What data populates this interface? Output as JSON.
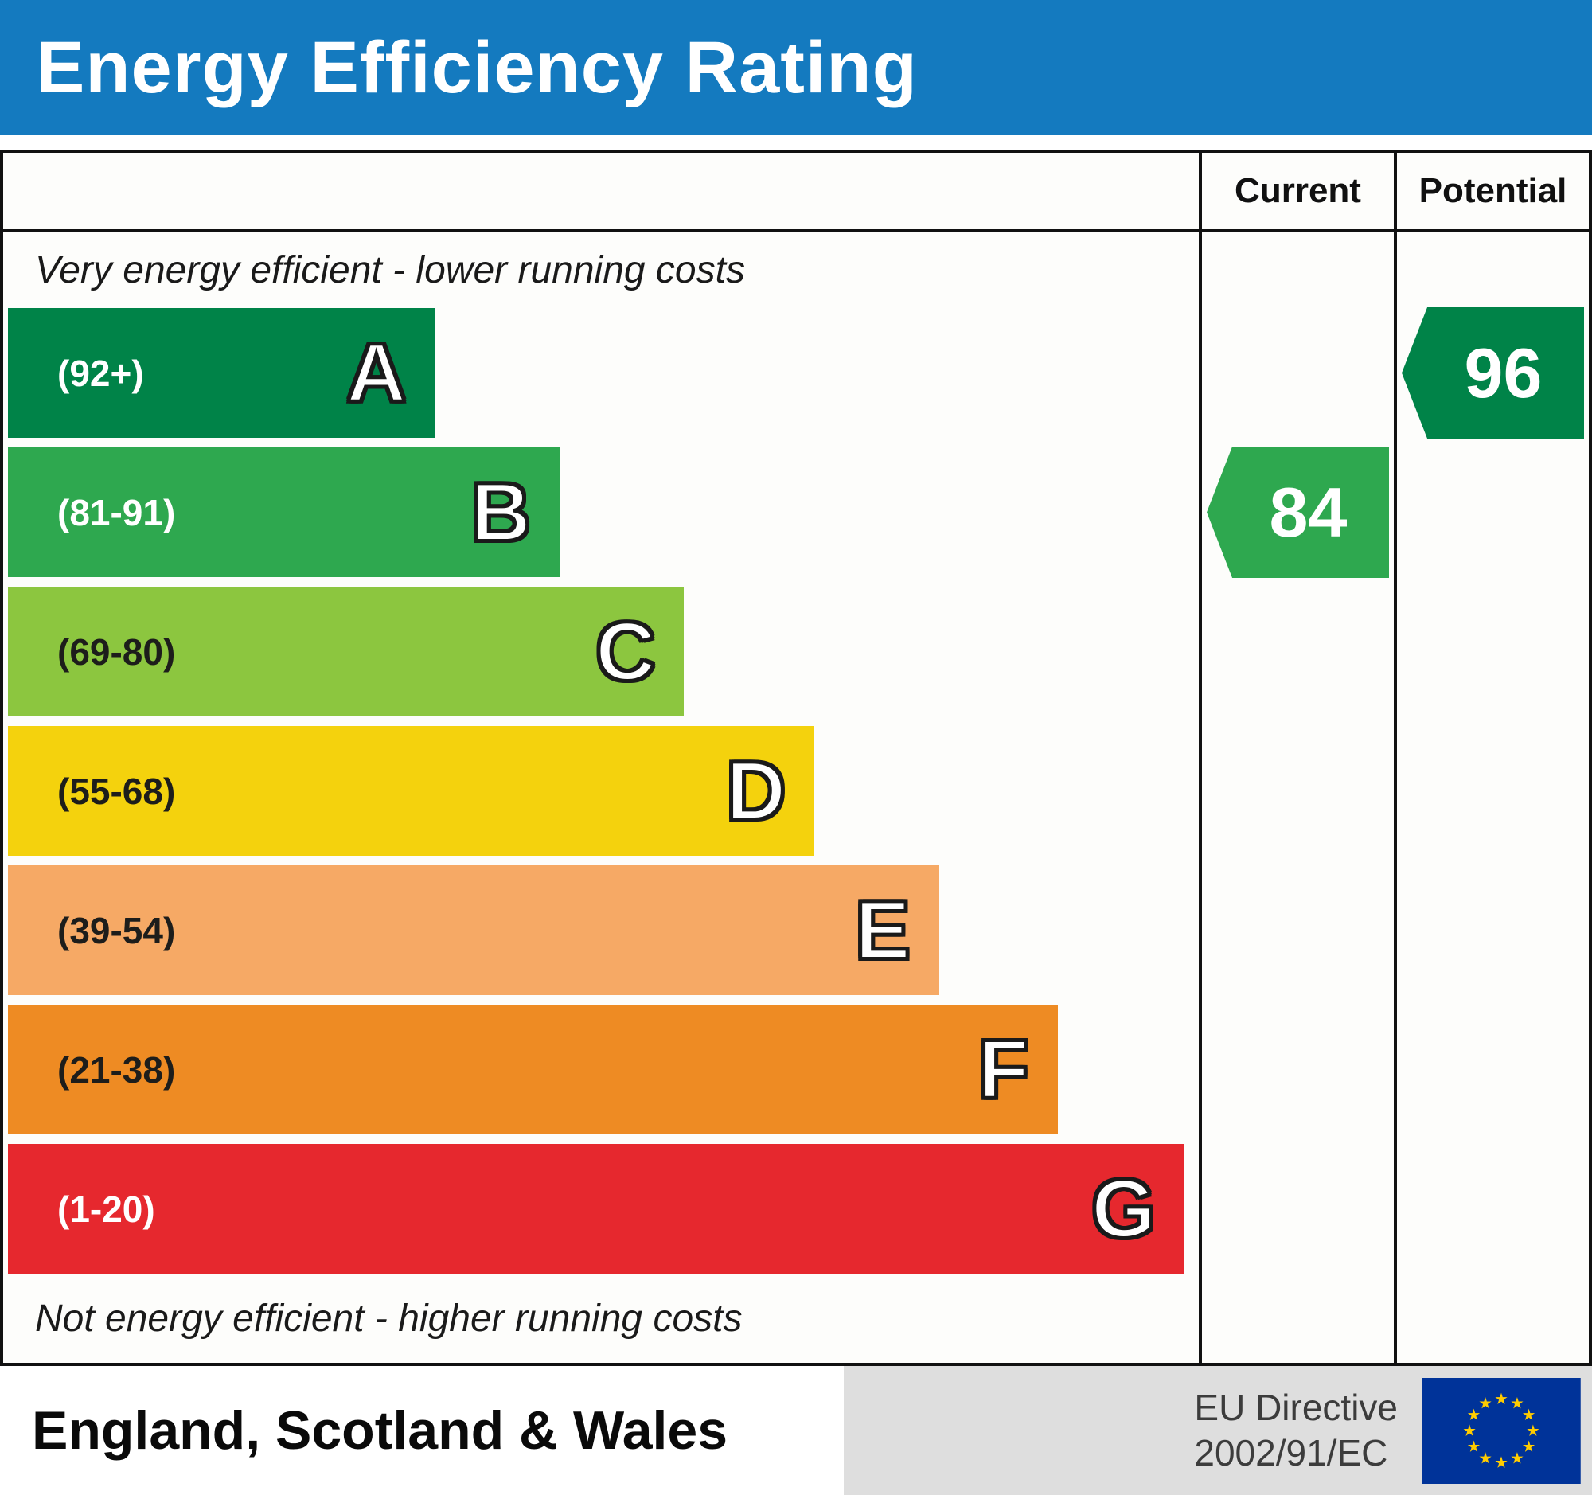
{
  "title": "Energy Efficiency Rating",
  "columns": {
    "current": "Current",
    "potential": "Potential"
  },
  "notes": {
    "top": "Very energy efficient - lower running costs",
    "bottom": "Not energy efficient - higher running costs"
  },
  "bands": [
    {
      "letter": "A",
      "range": "(92+)",
      "min": 92,
      "max": 100,
      "color": "#008348",
      "label_color": "#ffffff",
      "width_pct": 36
    },
    {
      "letter": "B",
      "range": "(81-91)",
      "min": 81,
      "max": 91,
      "color": "#2ea84f",
      "label_color": "#ffffff",
      "width_pct": 46.5
    },
    {
      "letter": "C",
      "range": "(69-80)",
      "min": 69,
      "max": 80,
      "color": "#8cc63f",
      "label_color": "#1d1d1b",
      "width_pct": 57
    },
    {
      "letter": "D",
      "range": "(55-68)",
      "min": 55,
      "max": 68,
      "color": "#f4d20d",
      "label_color": "#1d1d1b",
      "width_pct": 68
    },
    {
      "letter": "E",
      "range": "(39-54)",
      "min": 39,
      "max": 54,
      "color": "#f6a965",
      "label_color": "#1d1d1b",
      "width_pct": 78.5
    },
    {
      "letter": "F",
      "range": "(21-38)",
      "min": 21,
      "max": 38,
      "color": "#ee8b23",
      "label_color": "#1d1d1b",
      "width_pct": 88.5
    },
    {
      "letter": "G",
      "range": "(1-20)",
      "min": 1,
      "max": 20,
      "color": "#e6282e",
      "label_color": "#ffffff",
      "width_pct": 99.2
    }
  ],
  "ratings": {
    "current": {
      "value": 84,
      "band": "B",
      "band_index": 1,
      "color": "#2ea84f"
    },
    "potential": {
      "value": 96,
      "band": "A",
      "band_index": 0,
      "color": "#008348"
    }
  },
  "footer": {
    "region": "England, Scotland & Wales",
    "directive_line1": "EU Directive",
    "directive_line2": "2002/91/EC"
  },
  "colors": {
    "header_bg": "#147abf",
    "header_text": "#ffffff",
    "border": "#111111",
    "footer_right_bg": "#dedede",
    "eu_flag_bg": "#003399",
    "eu_star": "#ffcc00"
  },
  "chart_data": {
    "type": "bar",
    "title": "Energy Efficiency Rating",
    "categories": [
      "A (92+)",
      "B (81-91)",
      "C (69-80)",
      "D (55-68)",
      "E (39-54)",
      "F (21-38)",
      "G (1-20)"
    ],
    "values": [
      36,
      46.5,
      57,
      68,
      78.5,
      88.5,
      99.2
    ],
    "series": [
      {
        "name": "Current",
        "value": 84,
        "band": "B"
      },
      {
        "name": "Potential",
        "value": 96,
        "band": "A"
      }
    ],
    "xlabel": "",
    "ylabel": "",
    "legend_position": "none",
    "annotations": [
      "Very energy efficient - lower running costs",
      "Not energy efficient - higher running costs",
      "England, Scotland & Wales",
      "EU Directive 2002/91/EC"
    ]
  }
}
